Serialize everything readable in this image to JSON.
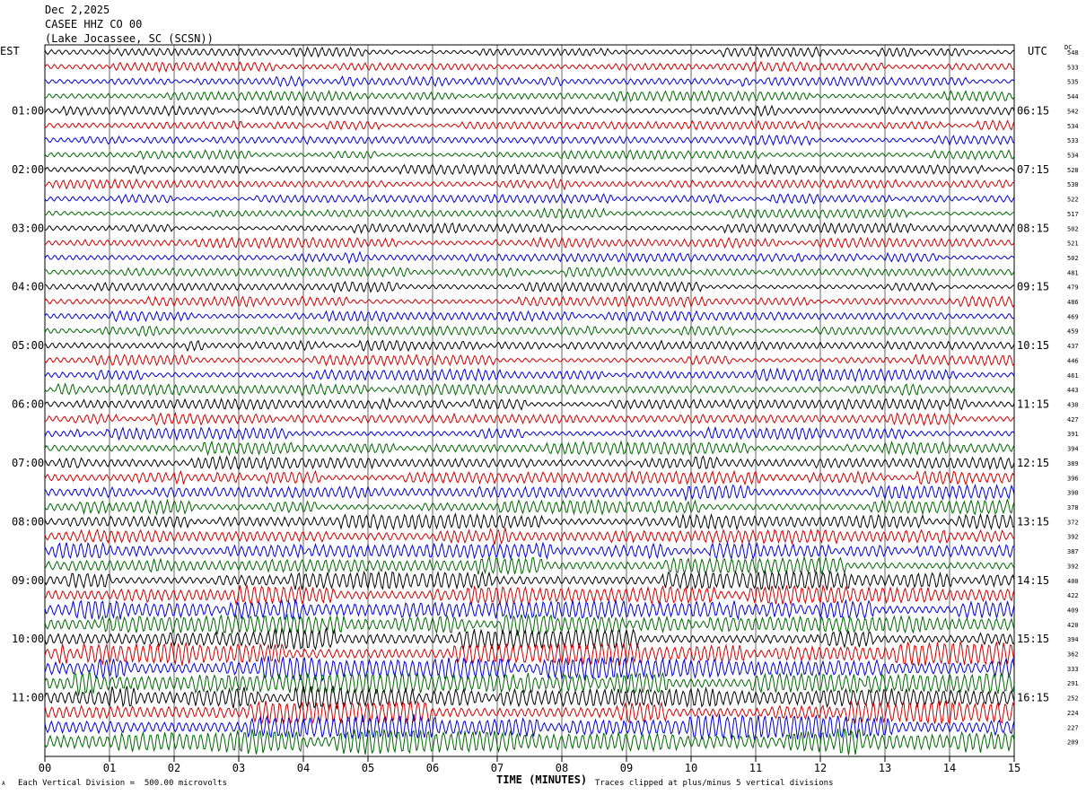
{
  "header": {
    "date": "Dec 2,2025",
    "station": "CASEE HHZ CO 00",
    "location": "(Lake Jocassee, SC (SCSN))"
  },
  "left_axis_title": "EST",
  "right_axis_title": "UTC",
  "dc_title": "DC",
  "footer": {
    "scale_note": "Each Vertical Division =  500.00 microvolts",
    "clip_note": "Traces clipped at plus/minus 5 vertical divisions",
    "corner_mark": "A"
  },
  "colors": {
    "trace_cycle": [
      "#000000",
      "#cc0000",
      "#0000cc",
      "#006600"
    ],
    "grid": "#000000",
    "background": "#ffffff"
  },
  "chart_data": {
    "type": "line",
    "title": "CASEE HHZ CO 00",
    "xlabel": "TIME (MINUTES)",
    "xlim": [
      0,
      15
    ],
    "x_ticks": [
      "00",
      "01",
      "02",
      "03",
      "04",
      "05",
      "06",
      "07",
      "08",
      "09",
      "10",
      "11",
      "12",
      "13",
      "14",
      "15"
    ],
    "grid": true,
    "est_hour_labels": [
      "01:00",
      "02:00",
      "03:00",
      "04:00",
      "05:00",
      "06:00",
      "07:00",
      "08:00",
      "09:00",
      "10:00",
      "11:00"
    ],
    "utc_hour_labels": [
      "06:15",
      "07:15",
      "08:15",
      "09:15",
      "10:15",
      "11:15",
      "12:15",
      "13:15",
      "14:15",
      "15:15",
      "16:15"
    ],
    "rows_per_hour": 4,
    "dc_offsets": [
      548,
      533,
      535,
      544,
      542,
      534,
      533,
      534,
      528,
      530,
      522,
      517,
      502,
      521,
      502,
      481,
      479,
      486,
      469,
      459,
      437,
      446,
      461,
      443,
      430,
      427,
      391,
      394,
      389,
      396,
      390,
      378,
      372,
      392,
      387,
      392,
      400,
      422,
      409,
      420,
      394,
      362,
      333,
      291,
      252,
      224,
      227,
      209
    ],
    "amplitude_level": [
      0.28,
      0.28,
      0.28,
      0.28,
      0.28,
      0.28,
      0.28,
      0.28,
      0.28,
      0.28,
      0.28,
      0.28,
      0.29,
      0.29,
      0.29,
      0.29,
      0.3,
      0.3,
      0.3,
      0.3,
      0.32,
      0.32,
      0.33,
      0.33,
      0.34,
      0.34,
      0.36,
      0.36,
      0.38,
      0.4,
      0.42,
      0.42,
      0.42,
      0.45,
      0.48,
      0.5,
      0.55,
      0.55,
      0.6,
      0.62,
      0.62,
      0.65,
      0.68,
      0.7,
      0.7,
      0.72,
      0.7,
      0.75
    ]
  }
}
